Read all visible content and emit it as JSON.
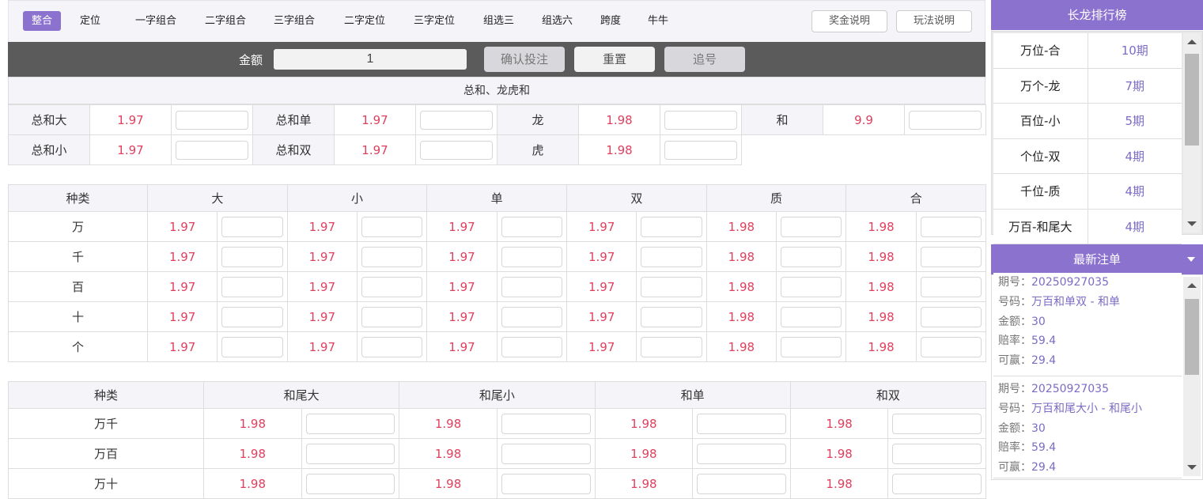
{
  "tabs": [
    {
      "label": "整合",
      "active": true
    },
    {
      "label": "定位"
    },
    {
      "label": "一字组合"
    },
    {
      "label": "二字组合"
    },
    {
      "label": "三字组合"
    },
    {
      "label": "二字定位"
    },
    {
      "label": "三字定位"
    },
    {
      "label": "组选三"
    },
    {
      "label": "组选六"
    },
    {
      "label": "跨度"
    },
    {
      "label": "牛牛"
    }
  ],
  "top_buttons": {
    "prize": "奖金说明",
    "rules": "玩法说明"
  },
  "betbar": {
    "amount_label": "金额",
    "amount_value": "1",
    "confirm": "确认投注",
    "reset": "重置",
    "chase": "追号"
  },
  "section1": {
    "title": "总和、龙虎和",
    "rows": [
      [
        [
          "总和大",
          "1.97"
        ],
        [
          "总和单",
          "1.97"
        ],
        [
          "龙",
          "1.98"
        ],
        [
          "和",
          "9.9"
        ]
      ],
      [
        [
          "总和小",
          "1.97"
        ],
        [
          "总和双",
          "1.97"
        ],
        [
          "虎",
          "1.98"
        ]
      ]
    ]
  },
  "section2": {
    "headers": [
      "种类",
      "大",
      "小",
      "单",
      "双",
      "质",
      "合"
    ],
    "rows": [
      {
        "label": "万",
        "odds": [
          "1.97",
          "1.97",
          "1.97",
          "1.97",
          "1.98",
          "1.98"
        ]
      },
      {
        "label": "千",
        "odds": [
          "1.97",
          "1.97",
          "1.97",
          "1.97",
          "1.98",
          "1.98"
        ]
      },
      {
        "label": "百",
        "odds": [
          "1.97",
          "1.97",
          "1.97",
          "1.97",
          "1.98",
          "1.98"
        ]
      },
      {
        "label": "十",
        "odds": [
          "1.97",
          "1.97",
          "1.97",
          "1.97",
          "1.98",
          "1.98"
        ]
      },
      {
        "label": "个",
        "odds": [
          "1.97",
          "1.97",
          "1.97",
          "1.97",
          "1.98",
          "1.98"
        ]
      }
    ]
  },
  "section3": {
    "headers": [
      "种类",
      "和尾大",
      "和尾小",
      "和单",
      "和双"
    ],
    "rows": [
      {
        "label": "万千",
        "odds": [
          "1.98",
          "1.98",
          "1.98",
          "1.98"
        ]
      },
      {
        "label": "万百",
        "odds": [
          "1.98",
          "1.98",
          "1.98",
          "1.98"
        ]
      },
      {
        "label": "万十",
        "odds": [
          "1.98",
          "1.98",
          "1.98",
          "1.98"
        ]
      }
    ]
  },
  "ranking": {
    "title": "长龙排行榜",
    "items": [
      {
        "name": "万位-合",
        "count": "10期"
      },
      {
        "name": "万个-龙",
        "count": "7期"
      },
      {
        "name": "百位-小",
        "count": "5期"
      },
      {
        "name": "个位-双",
        "count": "4期"
      },
      {
        "name": "千位-质",
        "count": "4期"
      },
      {
        "name": "万百-和尾大",
        "count": "4期"
      }
    ]
  },
  "latest": {
    "title": "最新注单",
    "keys": {
      "issue": "期号：",
      "code": "号码：",
      "amount": "金额：",
      "odds": "赔率：",
      "win": "可赢："
    },
    "orders": [
      {
        "issue": "20250927035",
        "code": "万百和单双 - 和单",
        "amount": "30",
        "odds": "59.4",
        "win": "29.4"
      },
      {
        "issue": "20250927035",
        "code": "万百和尾大小 - 和尾小",
        "amount": "30",
        "odds": "59.4",
        "win": "29.4"
      }
    ]
  },
  "colors": {
    "accent": "#8c72cf",
    "odds": "#e0405e",
    "value": "#7d6bc4"
  }
}
